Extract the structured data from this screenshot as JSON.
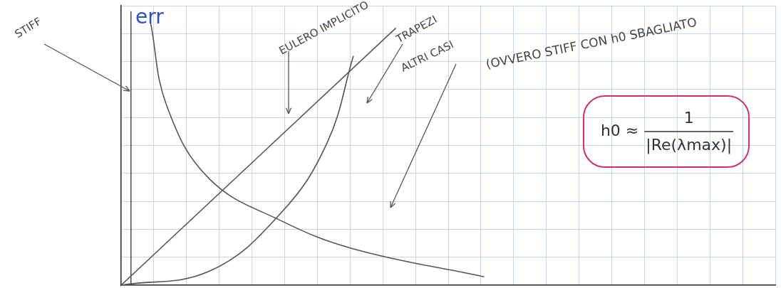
{
  "chart_data": {
    "type": "line",
    "y_label": "err",
    "xlim": [
      0,
      20
    ],
    "xticks": [
      0,
      1,
      2,
      3,
      4,
      5,
      6,
      7,
      8,
      9,
      10,
      11,
      12,
      13,
      14,
      15,
      16,
      17,
      18,
      19,
      20
    ],
    "ylim": [
      0,
      10
    ],
    "yticks": [
      0,
      1,
      2,
      3,
      4,
      5,
      6,
      7,
      8,
      9,
      10
    ],
    "grid": true,
    "tick_labels": false,
    "series": [
      {
        "name": "STIFF",
        "color": "#555555",
        "x": [
          0.3,
          0.3
        ],
        "values": [
          0,
          9.8
        ]
      },
      {
        "name": "EULERO IMPLICITO",
        "color": "#555555",
        "x": [
          0,
          8.4
        ],
        "values": [
          0,
          9.2
        ]
      },
      {
        "name": "TRAPEZI",
        "color": "#555555",
        "x": [
          0,
          2.7,
          4.9,
          6.3,
          7.1
        ],
        "values": [
          0,
          0.5,
          2.6,
          5.1,
          8.2
        ]
      },
      {
        "name": "ALTRI CASI",
        "color": "#555555",
        "x": [
          0.9,
          1.4,
          2.7,
          4.9,
          7.1,
          11.1
        ],
        "values": [
          9.4,
          6.4,
          3.8,
          2.3,
          1.3,
          0.3
        ]
      }
    ],
    "annotations": [
      "(OVVERO STIFF CON h0 SBAGLIATO"
    ],
    "formula": {
      "lhs": "h0 ≈",
      "numerator": "1",
      "denominator": "|Re(λmax)|"
    }
  }
}
